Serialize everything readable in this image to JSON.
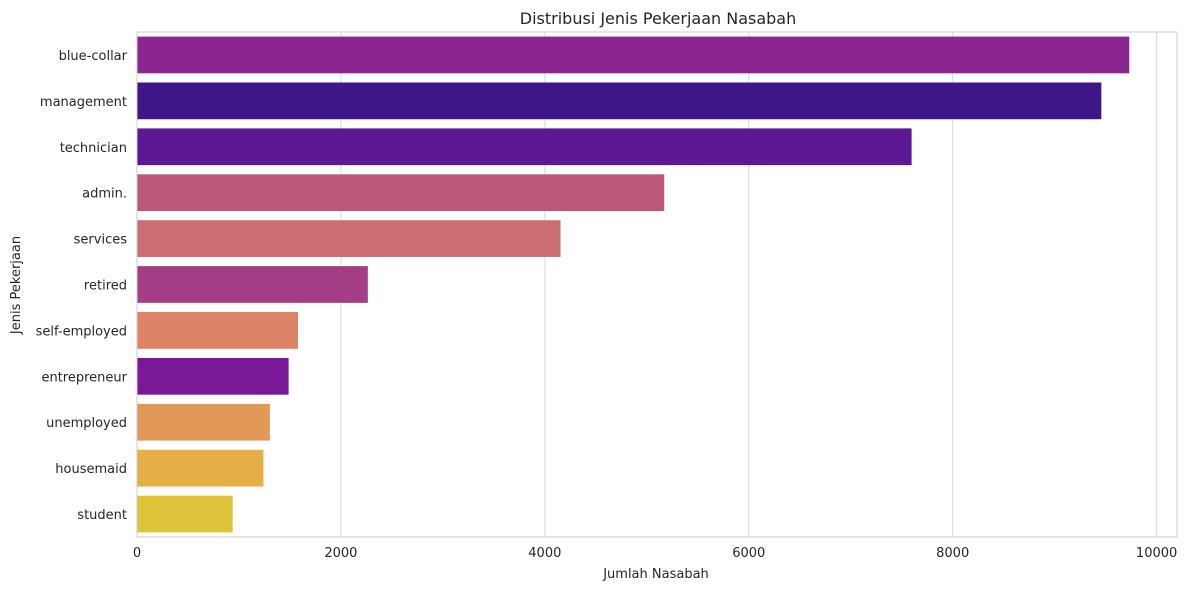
{
  "chart_data": {
    "type": "bar",
    "orientation": "horizontal",
    "title": "Distribusi Jenis Pekerjaan Nasabah",
    "xlabel": "Jumlah Nasabah",
    "ylabel": "Jenis Pekerjaan",
    "xlim": [
      0,
      10200
    ],
    "xticks": [
      0,
      2000,
      4000,
      6000,
      8000,
      10000
    ],
    "grid": true,
    "categories": [
      "blue-collar",
      "management",
      "technician",
      "admin.",
      "services",
      "retired",
      "self-employed",
      "entrepreneur",
      "unemployed",
      "housemaid",
      "student"
    ],
    "values": [
      9732,
      9458,
      7597,
      5171,
      4154,
      2264,
      1579,
      1487,
      1303,
      1240,
      938
    ],
    "colors": [
      "#8b2690",
      "#3f1687",
      "#5c1792",
      "#bb5877",
      "#cd6e73",
      "#a43d86",
      "#dd8264",
      "#7a1897",
      "#e29857",
      "#e5ae46",
      "#ddc43a"
    ]
  }
}
